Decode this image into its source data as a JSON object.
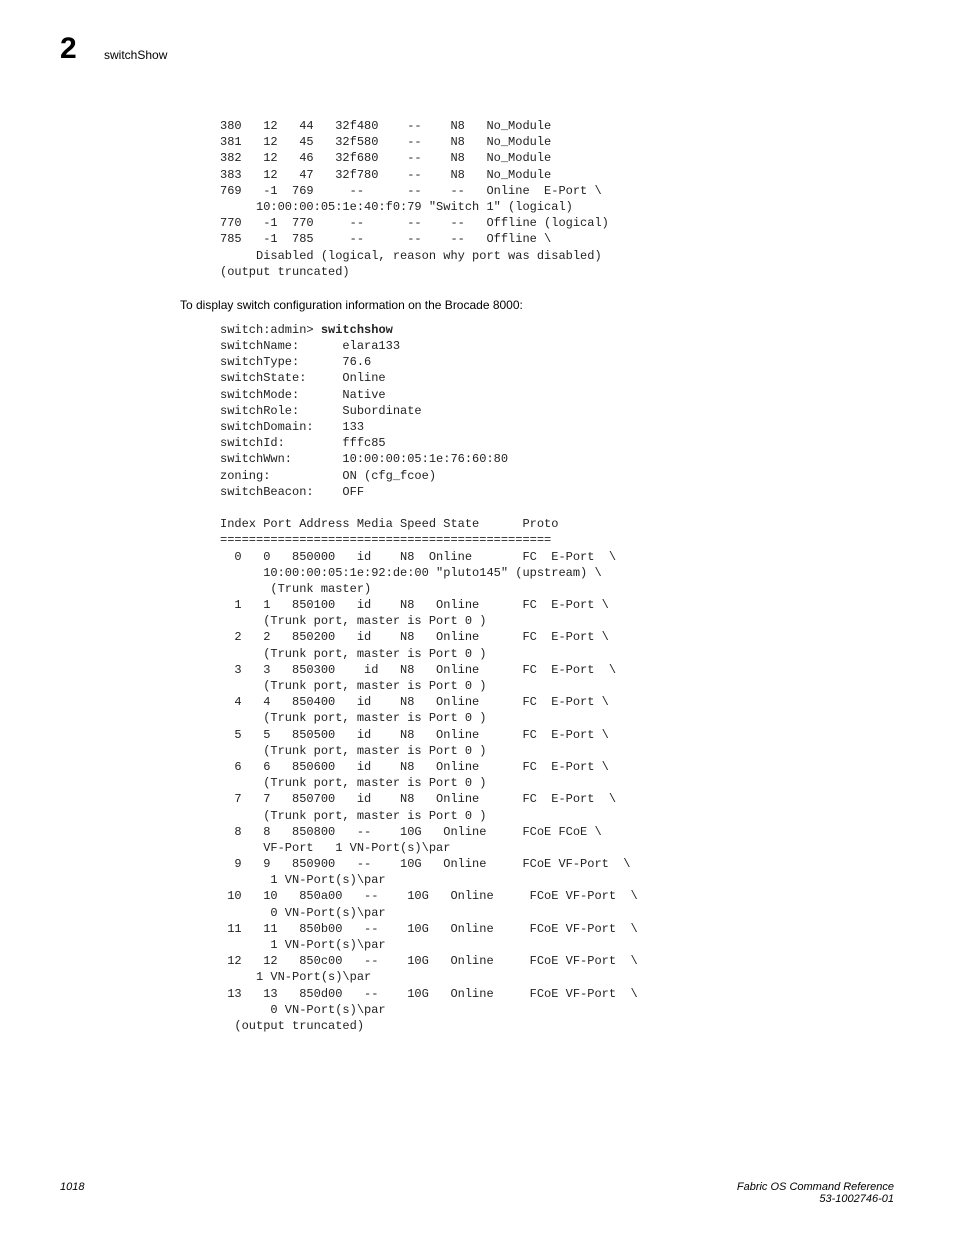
{
  "header": {
    "chapter": "2",
    "title": "switchShow"
  },
  "block1": "380   12   44   32f480    --    N8   No_Module\n381   12   45   32f580    --    N8   No_Module\n382   12   46   32f680    --    N8   No_Module\n383   12   47   32f780    --    N8   No_Module\n769   -1  769     --      --    --   Online  E-Port \\\n     10:00:00:05:1e:40:f0:79 \"Switch 1\" (logical)\n770   -1  770     --      --    --   Offline (logical)\n785   -1  785     --      --    --   Offline \\\n     Disabled (logical, reason why port was disabled)\n(output truncated)",
  "narrative": "To display switch configuration information on the Brocade 8000:",
  "block2_prefix": "switch:admin> ",
  "block2_cmd": "switchshow",
  "block2_body": "switchName:      elara133\nswitchType:      76.6\nswitchState:     Online\nswitchMode:      Native\nswitchRole:      Subordinate\nswitchDomain:    133\nswitchId:        fffc85\nswitchWwn:       10:00:00:05:1e:76:60:80\nzoning:          ON (cfg_fcoe)\nswitchBeacon:    OFF\n\nIndex Port Address Media Speed State      Proto\n==============================================\n  0   0   850000   id    N8  Online       FC  E-Port  \\\n      10:00:00:05:1e:92:de:00 \"pluto145\" (upstream) \\\n       (Trunk master)\n  1   1   850100   id    N8   Online      FC  E-Port \\\n      (Trunk port, master is Port 0 )\n  2   2   850200   id    N8   Online      FC  E-Port \\\n      (Trunk port, master is Port 0 )\n  3   3   850300    id   N8   Online      FC  E-Port  \\\n      (Trunk port, master is Port 0 )\n  4   4   850400   id    N8   Online      FC  E-Port \\\n      (Trunk port, master is Port 0 )\n  5   5   850500   id    N8   Online      FC  E-Port \\\n      (Trunk port, master is Port 0 )\n  6   6   850600   id    N8   Online      FC  E-Port \\\n      (Trunk port, master is Port 0 )\n  7   7   850700   id    N8   Online      FC  E-Port  \\\n      (Trunk port, master is Port 0 )\n  8   8   850800   --    10G   Online     FCoE FCoE \\\n      VF-Port   1 VN-Port(s)\\par\n  9   9   850900   --    10G   Online     FCoE VF-Port  \\\n       1 VN-Port(s)\\par\n 10   10   850a00   --    10G   Online     FCoE VF-Port  \\\n       0 VN-Port(s)\\par\n 11   11   850b00   --    10G   Online     FCoE VF-Port  \\\n       1 VN-Port(s)\\par\n 12   12   850c00   --    10G   Online     FCoE VF-Port  \\\n     1 VN-Port(s)\\par\n 13   13   850d00   --    10G   Online     FCoE VF-Port  \\\n       0 VN-Port(s)\\par\n  (output truncated)",
  "footer": {
    "page": "1018",
    "ref1": "Fabric OS Command Reference",
    "ref2": "53-1002746-01"
  }
}
